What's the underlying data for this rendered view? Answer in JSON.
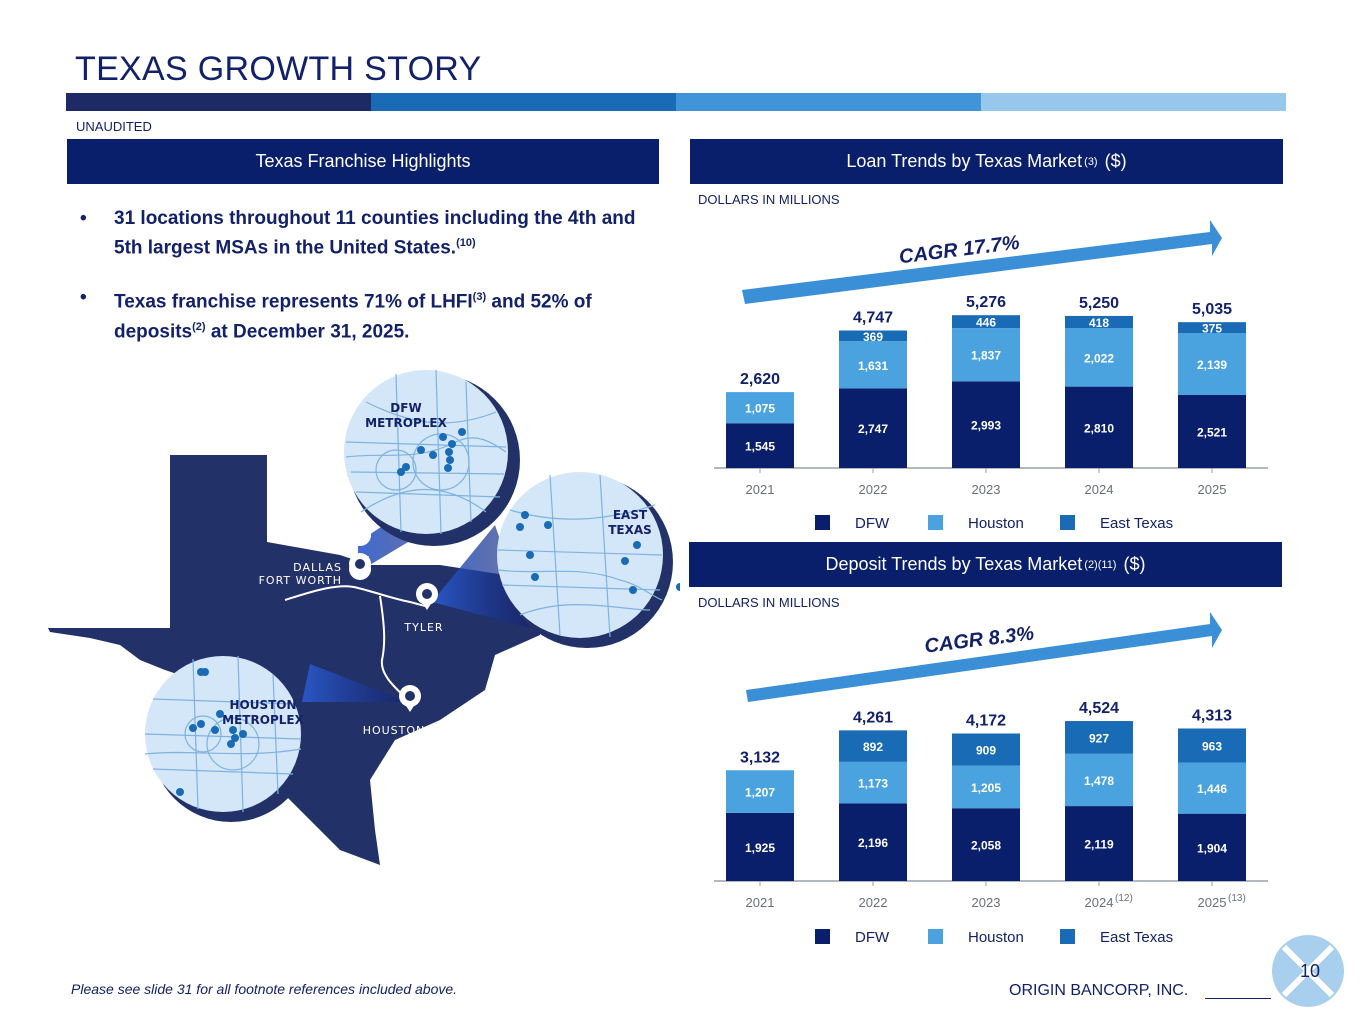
{
  "title": "TEXAS GROWTH STORY",
  "unaudited": "UNAUDITED",
  "stripe_colors": [
    "#1e2a66",
    "#1a6bb5",
    "#3f95d8",
    "#97c8ec"
  ],
  "highlights": {
    "header": "Texas Franchise Highlights",
    "bullets": [
      {
        "parts": [
          {
            "text": "31 locations throughout 11 counties including the 4th and 5th largest MSAs in the United States."
          },
          {
            "sup": "(10)"
          }
        ]
      },
      {
        "parts": [
          {
            "text": "Texas franchise represents 71% of LHFI"
          },
          {
            "sup": "(3)"
          },
          {
            "text": " and 52% of deposits"
          },
          {
            "sup": "(2)"
          },
          {
            "text": " at December 31, 2025."
          }
        ]
      }
    ]
  },
  "map": {
    "dfw_inset": "DFW METROPLEX",
    "east_inset": "EAST TEXAS",
    "houston_inset": "HOUSTON METROPLEX",
    "label_dfw_line1": "DALLAS",
    "label_dfw_line2": "FORT WORTH",
    "label_tyler": "TYLER",
    "label_houston": "HOUSTON"
  },
  "loan": {
    "header_main": "Loan Trends by Texas Market",
    "header_sup": "(3)",
    "header_tail": "($)",
    "units": "DOLLARS IN MILLIONS",
    "cagr": "CAGR 17.7%"
  },
  "deposit": {
    "header_main": "Deposit Trends by Texas Market",
    "header_sup": "(2)(11)",
    "header_tail": "($)",
    "units": "DOLLARS IN MILLIONS",
    "cagr": "CAGR 8.3%"
  },
  "colors": {
    "dfw": "#0a1f6b",
    "houston": "#4aa3df",
    "east_texas": "#1a6bb5",
    "navy": "#13216a",
    "arrow": "#3a8fd6"
  },
  "chart_data": [
    {
      "type": "bar",
      "stacked": true,
      "categories": [
        "2021",
        "2022",
        "2023",
        "2024",
        "2025"
      ],
      "category_superscripts": [
        "",
        "",
        "",
        "",
        ""
      ],
      "series": [
        {
          "name": "DFW",
          "values": [
            1545,
            2747,
            2993,
            2810,
            2521
          ]
        },
        {
          "name": "Houston",
          "values": [
            1075,
            1631,
            1837,
            2022,
            2139
          ]
        },
        {
          "name": "East Texas",
          "values": [
            null,
            369,
            446,
            418,
            375
          ]
        }
      ],
      "totals": [
        2620,
        4747,
        5276,
        5250,
        5035
      ],
      "title": "",
      "legend_placement": "bottom",
      "grid": false,
      "ylim": [
        0,
        5800
      ]
    },
    {
      "type": "bar",
      "stacked": true,
      "categories": [
        "2021",
        "2022",
        "2023",
        "2024",
        "2025"
      ],
      "category_superscripts": [
        "",
        "",
        "",
        "(12)",
        "(13)"
      ],
      "series": [
        {
          "name": "DFW",
          "values": [
            1925,
            2196,
            2058,
            2119,
            1904
          ]
        },
        {
          "name": "Houston",
          "values": [
            1207,
            1173,
            1205,
            1478,
            1446
          ]
        },
        {
          "name": "East Texas",
          "values": [
            null,
            892,
            909,
            927,
            963
          ]
        }
      ],
      "totals": [
        3132,
        4261,
        4172,
        4524,
        4313
      ],
      "title": "",
      "legend_placement": "bottom",
      "grid": false,
      "ylim": [
        0,
        5600
      ]
    }
  ],
  "footer": {
    "note": "Please see slide 31 for all footnote references included above.",
    "company": "ORIGIN BANCORP, INC.",
    "page": "10"
  }
}
